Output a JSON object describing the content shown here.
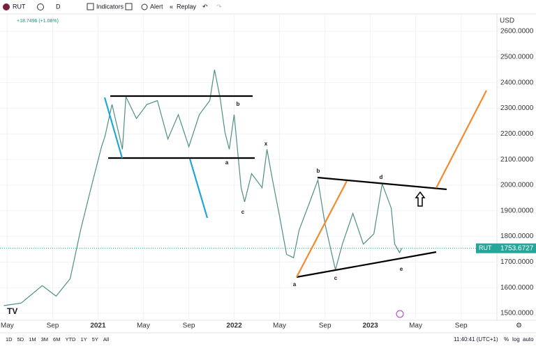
{
  "toolbar": {
    "symbol": "RUT",
    "interval": "D",
    "indicators": "Indicators",
    "alert": "Alert",
    "replay": "Replay"
  },
  "legend_change": "+18.7496 (+1.08%)",
  "chart_data": {
    "type": "line",
    "currency": "USD",
    "x": [
      2020.308,
      2020.436,
      2020.59,
      2020.692,
      2020.795,
      2020.872,
      2020.949,
      2021.026,
      2021.051,
      2021.103,
      2021.179,
      2021.205,
      2021.282,
      2021.359,
      2021.436,
      2021.513,
      2021.59,
      2021.667,
      2021.744,
      2021.821,
      2021.856,
      2021.897,
      2021.933,
      2021.964,
      2022.0,
      2022.051,
      2022.077,
      2022.128,
      2022.205,
      2022.241,
      2022.282,
      2022.333,
      2022.385,
      2022.436,
      2022.477,
      2022.538,
      2022.615,
      2022.667,
      2022.744,
      2022.795,
      2022.872,
      2022.949,
      2023.026,
      2023.087,
      2023.154,
      2023.179,
      2023.215,
      2023.231
    ],
    "series": [
      {
        "name": "RUT",
        "color": "#4f8f86",
        "values": [
          1530,
          1540,
          1608,
          1567,
          1635,
          1825,
          1990,
          2150,
          2190,
          2315,
          2140,
          2345,
          2260,
          2315,
          2330,
          2180,
          2275,
          2150,
          2275,
          2330,
          2450,
          2340,
          2205,
          2140,
          2275,
          1990,
          1935,
          2045,
          1990,
          2140,
          2020,
          1880,
          1730,
          1717,
          1825,
          1910,
          2020,
          1850,
          1670,
          1770,
          1890,
          1770,
          1810,
          2005,
          1910,
          1770,
          1737,
          1754
        ]
      }
    ],
    "last_price": 1753.6727,
    "xlim": [
      2020.28,
      2023.93
    ],
    "ylim": [
      1473,
      2668
    ],
    "xticks": [
      {
        "value": 2020.333,
        "label": "May"
      },
      {
        "value": 2020.667,
        "label": "Sep"
      },
      2021,
      {
        "value": 2021.333,
        "label": "May"
      },
      {
        "value": 2021.667,
        "label": "Sep"
      },
      2022,
      {
        "value": 2022.333,
        "label": "May"
      },
      {
        "value": 2022.667,
        "label": "Sep"
      },
      2023,
      {
        "value": 2023.333,
        "label": "May"
      },
      {
        "value": 2023.667,
        "label": "Sep"
      }
    ],
    "yticks": [
      {
        "value": 1500,
        "label": "1500.0000"
      },
      {
        "value": 1600,
        "label": "1600.0000"
      },
      {
        "value": 1700,
        "label": "1700.0000"
      },
      {
        "value": 1800,
        "label": "1800.0000"
      },
      {
        "value": 1900,
        "label": "1900.0000"
      },
      {
        "value": 2000,
        "label": "2000.0000"
      },
      {
        "value": 2100,
        "label": "2100.0000"
      },
      {
        "value": 2200,
        "label": "2200.0000"
      },
      {
        "value": 2300,
        "label": "2300.0000"
      },
      {
        "value": 2400,
        "label": "2400.0000"
      },
      {
        "value": 2500,
        "label": "2500.0000"
      },
      {
        "value": 2600,
        "label": "2600.0000"
      }
    ],
    "grid": true,
    "annotations": [
      "b",
      "a",
      "x",
      "c",
      "b",
      "d",
      "a",
      "c",
      "e"
    ]
  },
  "footer": {
    "ranges": [
      "1D",
      "5D",
      "1M",
      "3M",
      "6M",
      "YTD",
      "1Y",
      "5Y",
      "All"
    ],
    "time": "11:40:41 (UTC+1)",
    "percent": "%",
    "log": "log",
    "auto": "auto"
  }
}
